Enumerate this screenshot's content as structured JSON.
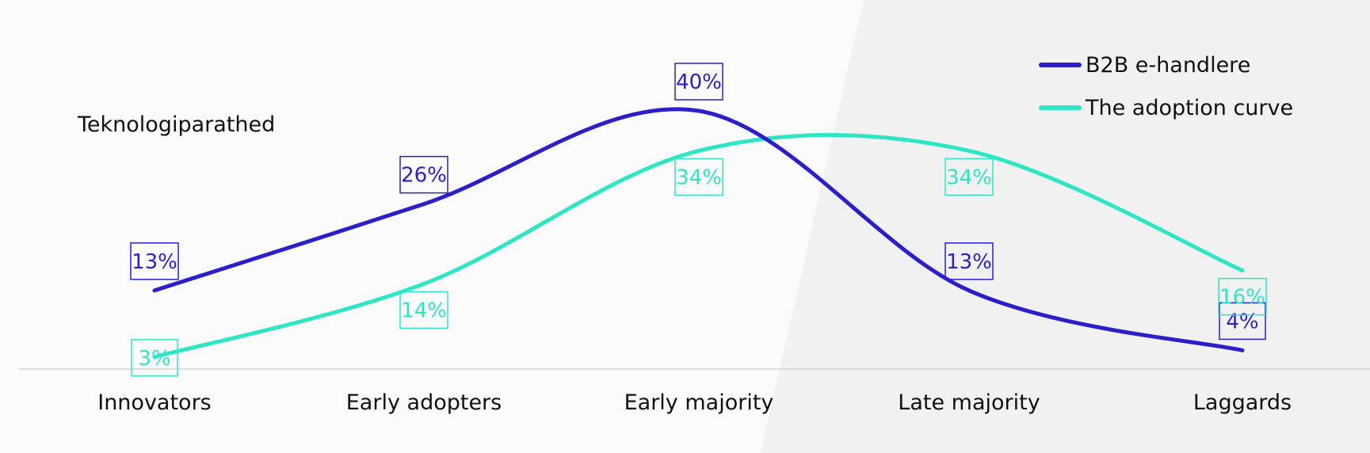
{
  "chart_data": {
    "type": "line",
    "side_label": "Teknologiparathed",
    "categories": [
      "Innovators",
      "Early adopters",
      "Early majority",
      "Late majority",
      "Laggards"
    ],
    "ylim": [
      0,
      48
    ],
    "grid": false,
    "legend_position": "top-right",
    "series": [
      {
        "name": "B2B e-handlere",
        "values": [
          13,
          26,
          40,
          13,
          4
        ],
        "labels": [
          "13%",
          "26%",
          "40%",
          "13%",
          "4%"
        ],
        "label_position": "above",
        "color": "#2a1fc8"
      },
      {
        "name": "The adoption curve",
        "values": [
          3,
          14,
          34,
          34,
          16
        ],
        "labels": [
          "3%",
          "14%",
          "34%",
          "34%",
          "16%"
        ],
        "label_position": "below",
        "color": "#2ee6c5"
      }
    ]
  }
}
